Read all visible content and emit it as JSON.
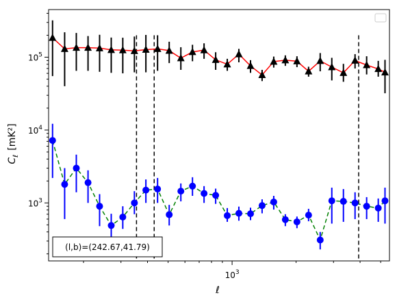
{
  "chart_data": {
    "type": "scatter",
    "x_scale": "log",
    "y_scale": "log",
    "xlim": [
      137,
      5500
    ],
    "ylim": [
      160,
      450000
    ],
    "xlabel": "ℓ",
    "ylabel_main": "C",
    "ylabel_sub": "ℓ",
    "ylabel_units": "[mK²]",
    "x_ticks": [
      {
        "value": 1000,
        "base": "10",
        "exp": "3"
      }
    ],
    "y_ticks": [
      {
        "value": 1000,
        "base": "10",
        "exp": "3"
      },
      {
        "value": 10000,
        "base": "10",
        "exp": "4"
      },
      {
        "value": 100000,
        "base": "10",
        "exp": "5"
      }
    ],
    "vlines": [
      355,
      430,
      3940
    ],
    "annotation": "(l,b)=(242.67,41.79)",
    "legend": {
      "placement": "top-right",
      "entries": []
    },
    "series": [
      {
        "color": "#ff0000",
        "marker": "triangle",
        "marker_color": "#000000",
        "errorbar_color": "#000000",
        "linestyle": "solid",
        "x": [
          143,
          163,
          185,
          210,
          238,
          270,
          306,
          347,
          393,
          446,
          506,
          574,
          651,
          738,
          837,
          949,
          1076,
          1221,
          1384,
          1570,
          1780,
          2019,
          2290,
          2597,
          2945,
          3340,
          3788,
          4295,
          4871,
          5240
        ],
        "y": [
          185000,
          130000,
          135000,
          135000,
          133000,
          126000,
          125000,
          122000,
          127000,
          130000,
          123000,
          97000,
          118000,
          125000,
          92000,
          80000,
          110000,
          76000,
          57000,
          87000,
          91000,
          88000,
          64000,
          89000,
          73000,
          61000,
          90000,
          78000,
          69000,
          62000
        ],
        "err_low": [
          130000,
          90000,
          70000,
          70000,
          70000,
          65000,
          65000,
          60000,
          65000,
          65000,
          40000,
          30000,
          30000,
          30000,
          25000,
          15000,
          25000,
          15000,
          10000,
          15000,
          15000,
          15000,
          10000,
          25000,
          25000,
          15000,
          20000,
          20000,
          15000,
          30000
        ],
        "err_high": [
          135000,
          90000,
          80000,
          60000,
          70000,
          60000,
          60000,
          70000,
          75000,
          70000,
          40000,
          40000,
          30000,
          30000,
          25000,
          15000,
          20000,
          15000,
          10000,
          15000,
          15000,
          15000,
          10000,
          25000,
          25000,
          20000,
          20000,
          25000,
          20000,
          30000
        ]
      },
      {
        "color": "#008000",
        "marker": "circle",
        "marker_color": "#0000ff",
        "errorbar_color": "#0000ff",
        "linestyle": "dashed",
        "x": [
          143,
          163,
          185,
          210,
          238,
          270,
          306,
          347,
          393,
          446,
          506,
          574,
          651,
          738,
          837,
          949,
          1076,
          1221,
          1384,
          1570,
          1780,
          2019,
          2290,
          2597,
          2945,
          3340,
          3788,
          4295,
          4871,
          5240
        ],
        "y": [
          7200,
          1800,
          3000,
          1900,
          900,
          490,
          640,
          1000,
          1500,
          1550,
          690,
          1450,
          1700,
          1350,
          1270,
          670,
          720,
          710,
          920,
          1030,
          590,
          550,
          680,
          310,
          1070,
          1050,
          1000,
          900,
          850,
          1070
        ],
        "err_low": [
          5000,
          1200,
          1600,
          900,
          420,
          220,
          200,
          300,
          500,
          550,
          200,
          400,
          450,
          350,
          300,
          120,
          150,
          130,
          200,
          220,
          110,
          100,
          120,
          80,
          550,
          500,
          400,
          300,
          300,
          550
        ],
        "err_high": [
          5000,
          1200,
          1600,
          900,
          420,
          220,
          260,
          450,
          600,
          650,
          250,
          400,
          550,
          350,
          300,
          180,
          170,
          150,
          200,
          220,
          110,
          100,
          150,
          90,
          550,
          500,
          400,
          300,
          300,
          550
        ]
      }
    ]
  }
}
